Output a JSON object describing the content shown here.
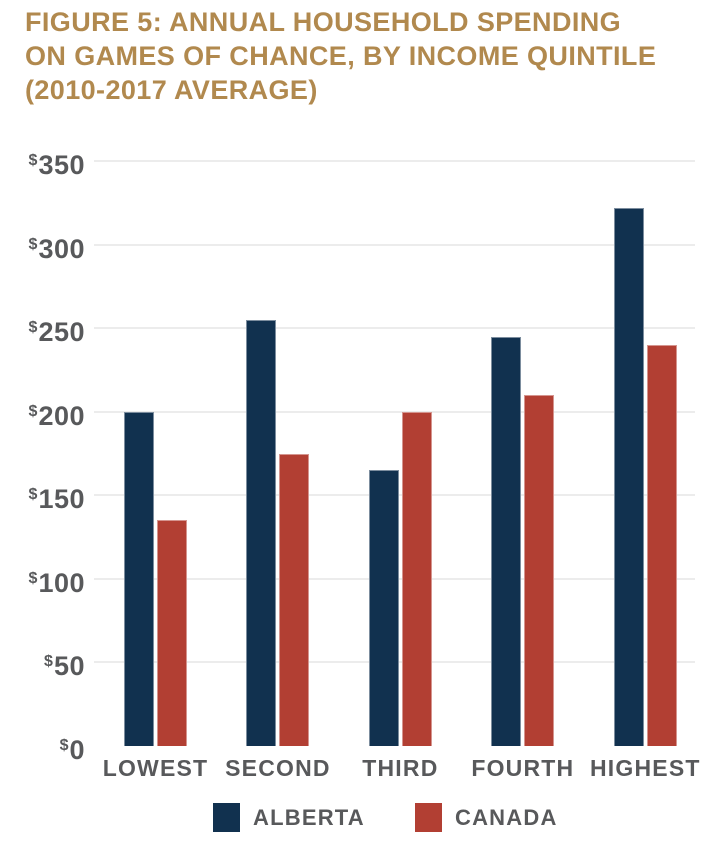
{
  "figure": {
    "title_lines": [
      "FIGURE 5: ANNUAL HOUSEHOLD SPENDING",
      "ON GAMES OF CHANCE, BY INCOME QUINTILE",
      "(2010-2017 AVERAGE)"
    ]
  },
  "colors": {
    "title": "#B1894E",
    "axis_text": "#58595B",
    "gridline": "#ECECEC",
    "alberta": "#11314F",
    "canada": "#B23F33",
    "background": "#FFFFFF"
  },
  "chart_data": {
    "type": "bar",
    "title": "Figure 5: Annual household spending on games of chance, by income quintile (2010-2017 average)",
    "categories": [
      "LOWEST",
      "SECOND",
      "THIRD",
      "FOURTH",
      "HIGHEST"
    ],
    "series": [
      {
        "name": "ALBERTA",
        "color": "#11314F",
        "values": [
          200,
          255,
          165,
          245,
          322
        ]
      },
      {
        "name": "CANADA",
        "color": "#B23F33",
        "values": [
          135,
          175,
          200,
          210,
          240
        ]
      }
    ],
    "xlabel": "",
    "ylabel": "",
    "ylim": [
      0,
      350
    ],
    "y_ticks": [
      0,
      50,
      100,
      150,
      200,
      250,
      300,
      350
    ],
    "currency_prefix": "$",
    "grid": true,
    "gridline_color": "#ECECEC",
    "legend_position": "bottom"
  },
  "legend": {
    "items": [
      {
        "label": "ALBERTA",
        "color": "#11314F"
      },
      {
        "label": "CANADA",
        "color": "#B23F33"
      }
    ]
  }
}
